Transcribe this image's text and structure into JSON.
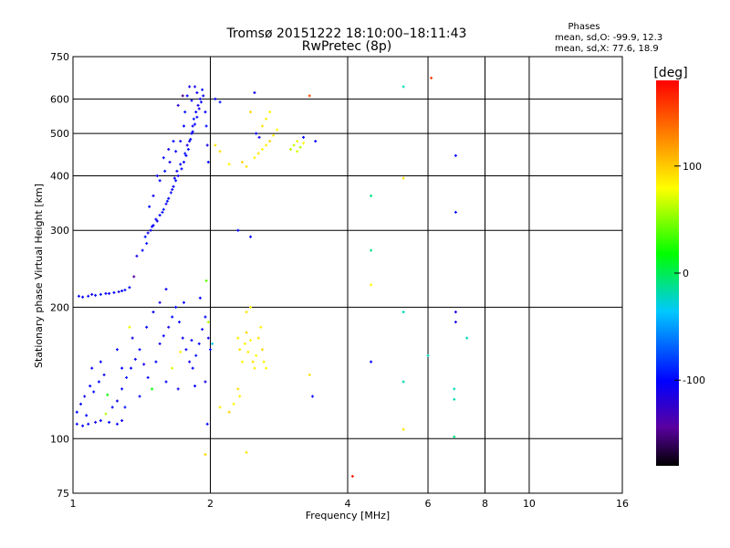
{
  "chart_data": {
    "type": "scatter",
    "title": "Tromsø 20151222 18:10:00–18:11:43",
    "subtitle": "RwPretec (8p)",
    "info": {
      "heading": "Phases",
      "line1": "mean, sd,O: -99.9, 12.3",
      "line2": "mean, sd,X:  77.6, 18.9"
    },
    "xlabel": "Frequency [MHz]",
    "ylabel": "Stationary phase Virtual Height [km]",
    "x_scale": "log",
    "y_scale": "log",
    "xlim": [
      1,
      16
    ],
    "ylim": [
      75,
      750
    ],
    "x_ticks": [
      1,
      2,
      4,
      6,
      8,
      10,
      16
    ],
    "x_tick_labels": [
      "1",
      "2",
      "4",
      "6",
      "8",
      "10",
      "16"
    ],
    "x_grid": [
      2,
      4,
      6,
      8,
      10
    ],
    "y_ticks": [
      75,
      100,
      200,
      300,
      400,
      500,
      600,
      750
    ],
    "y_tick_labels": [
      "75",
      "100",
      "200",
      "300",
      "400",
      "500",
      "600",
      "750"
    ],
    "y_grid": [
      100,
      200,
      300,
      400,
      500,
      600
    ],
    "grid": true,
    "colorbar": {
      "label": "[deg]",
      "range": [
        -180,
        180
      ],
      "ticks": [
        100,
        0,
        -100
      ],
      "tick_labels": [
        "100",
        "0",
        "-100"
      ]
    },
    "points": [
      {
        "x": 1.85,
        "y": 640,
        "c": -110
      },
      {
        "x": 1.87,
        "y": 620,
        "c": -105
      },
      {
        "x": 1.9,
        "y": 600,
        "c": -100
      },
      {
        "x": 1.88,
        "y": 580,
        "c": -110
      },
      {
        "x": 1.86,
        "y": 560,
        "c": -100
      },
      {
        "x": 1.84,
        "y": 540,
        "c": -95
      },
      {
        "x": 1.83,
        "y": 520,
        "c": -105
      },
      {
        "x": 1.82,
        "y": 500,
        "c": -100
      },
      {
        "x": 1.8,
        "y": 480,
        "c": -110
      },
      {
        "x": 1.79,
        "y": 460,
        "c": -95
      },
      {
        "x": 1.77,
        "y": 445,
        "c": -100
      },
      {
        "x": 1.75,
        "y": 430,
        "c": -105
      },
      {
        "x": 1.73,
        "y": 415,
        "c": -100
      },
      {
        "x": 1.7,
        "y": 400,
        "c": -110
      },
      {
        "x": 1.68,
        "y": 390,
        "c": -95
      },
      {
        "x": 1.66,
        "y": 378,
        "c": -100
      },
      {
        "x": 1.64,
        "y": 366,
        "c": -105
      },
      {
        "x": 1.62,
        "y": 355,
        "c": -100
      },
      {
        "x": 1.6,
        "y": 345,
        "c": -110
      },
      {
        "x": 1.58,
        "y": 335,
        "c": -95
      },
      {
        "x": 1.55,
        "y": 325,
        "c": -100
      },
      {
        "x": 1.53,
        "y": 315,
        "c": -105
      },
      {
        "x": 1.5,
        "y": 308,
        "c": -100
      },
      {
        "x": 1.48,
        "y": 300,
        "c": -110
      },
      {
        "x": 1.92,
        "y": 630,
        "c": -100
      },
      {
        "x": 1.93,
        "y": 610,
        "c": -105
      },
      {
        "x": 1.91,
        "y": 590,
        "c": -100
      },
      {
        "x": 1.89,
        "y": 570,
        "c": -110
      },
      {
        "x": 1.87,
        "y": 545,
        "c": -95
      },
      {
        "x": 1.85,
        "y": 525,
        "c": -100
      },
      {
        "x": 1.83,
        "y": 505,
        "c": -105
      },
      {
        "x": 1.81,
        "y": 485,
        "c": -100
      },
      {
        "x": 1.78,
        "y": 470,
        "c": -110
      },
      {
        "x": 1.76,
        "y": 450,
        "c": -95
      },
      {
        "x": 1.72,
        "y": 425,
        "c": -100
      },
      {
        "x": 1.69,
        "y": 410,
        "c": -105
      },
      {
        "x": 1.67,
        "y": 395,
        "c": -100
      },
      {
        "x": 1.65,
        "y": 372,
        "c": -110
      },
      {
        "x": 1.61,
        "y": 350,
        "c": -95
      },
      {
        "x": 1.57,
        "y": 330,
        "c": -100
      },
      {
        "x": 1.52,
        "y": 318,
        "c": -105
      },
      {
        "x": 1.49,
        "y": 306,
        "c": -100
      },
      {
        "x": 1.46,
        "y": 296,
        "c": -110
      },
      {
        "x": 1.44,
        "y": 290,
        "c": -95
      },
      {
        "x": 1.75,
        "y": 520,
        "c": -100
      },
      {
        "x": 1.72,
        "y": 480,
        "c": -105
      },
      {
        "x": 1.68,
        "y": 455,
        "c": -100
      },
      {
        "x": 1.63,
        "y": 430,
        "c": -110
      },
      {
        "x": 1.59,
        "y": 410,
        "c": -95
      },
      {
        "x": 1.55,
        "y": 390,
        "c": -100
      },
      {
        "x": 1.5,
        "y": 360,
        "c": -105
      },
      {
        "x": 1.47,
        "y": 340,
        "c": -100
      },
      {
        "x": 1.95,
        "y": 560,
        "c": -100
      },
      {
        "x": 1.96,
        "y": 520,
        "c": -95
      },
      {
        "x": 1.97,
        "y": 470,
        "c": -110
      },
      {
        "x": 1.98,
        "y": 430,
        "c": -100
      },
      {
        "x": 1.8,
        "y": 640,
        "c": -110
      },
      {
        "x": 1.78,
        "y": 610,
        "c": -100
      },
      {
        "x": 1.82,
        "y": 595,
        "c": -105
      },
      {
        "x": 1.76,
        "y": 560,
        "c": -95
      },
      {
        "x": 1.66,
        "y": 480,
        "c": -100
      },
      {
        "x": 1.62,
        "y": 460,
        "c": -110
      },
      {
        "x": 1.58,
        "y": 440,
        "c": -100
      },
      {
        "x": 1.53,
        "y": 400,
        "c": -105
      },
      {
        "x": 1.42,
        "y": 270,
        "c": -100
      },
      {
        "x": 1.38,
        "y": 262,
        "c": -110
      },
      {
        "x": 1.45,
        "y": 280,
        "c": -95
      },
      {
        "x": 1.74,
        "y": 610,
        "c": -150
      },
      {
        "x": 1.7,
        "y": 580,
        "c": -120
      },
      {
        "x": 2.05,
        "y": 600,
        "c": -100
      },
      {
        "x": 2.1,
        "y": 590,
        "c": -95
      },
      {
        "x": 1.03,
        "y": 212,
        "c": -100
      },
      {
        "x": 1.05,
        "y": 211,
        "c": -105
      },
      {
        "x": 1.08,
        "y": 212,
        "c": -100
      },
      {
        "x": 1.1,
        "y": 214,
        "c": -110
      },
      {
        "x": 1.12,
        "y": 213,
        "c": -100
      },
      {
        "x": 1.15,
        "y": 214,
        "c": -95
      },
      {
        "x": 1.18,
        "y": 215,
        "c": -100
      },
      {
        "x": 1.2,
        "y": 215,
        "c": -105
      },
      {
        "x": 1.23,
        "y": 216,
        "c": -100
      },
      {
        "x": 1.26,
        "y": 217,
        "c": -110
      },
      {
        "x": 1.28,
        "y": 218,
        "c": -100
      },
      {
        "x": 1.3,
        "y": 219,
        "c": -95
      },
      {
        "x": 1.33,
        "y": 222,
        "c": -100
      },
      {
        "x": 1.36,
        "y": 235,
        "c": -140
      },
      {
        "x": 1.02,
        "y": 108,
        "c": -100
      },
      {
        "x": 1.05,
        "y": 107,
        "c": -105
      },
      {
        "x": 1.08,
        "y": 108,
        "c": -100
      },
      {
        "x": 1.12,
        "y": 109,
        "c": -110
      },
      {
        "x": 1.15,
        "y": 110,
        "c": -100
      },
      {
        "x": 1.2,
        "y": 109,
        "c": -95
      },
      {
        "x": 1.25,
        "y": 108,
        "c": -100
      },
      {
        "x": 1.28,
        "y": 110,
        "c": -105
      },
      {
        "x": 1.04,
        "y": 120,
        "c": -100
      },
      {
        "x": 1.06,
        "y": 125,
        "c": -110
      },
      {
        "x": 1.09,
        "y": 132,
        "c": -100
      },
      {
        "x": 1.11,
        "y": 128,
        "c": -95
      },
      {
        "x": 1.14,
        "y": 135,
        "c": -100
      },
      {
        "x": 1.17,
        "y": 140,
        "c": -105
      },
      {
        "x": 1.19,
        "y": 126,
        "c": 20
      },
      {
        "x": 1.22,
        "y": 118,
        "c": -100
      },
      {
        "x": 1.25,
        "y": 122,
        "c": -110
      },
      {
        "x": 1.28,
        "y": 130,
        "c": -100
      },
      {
        "x": 1.31,
        "y": 138,
        "c": -95
      },
      {
        "x": 1.34,
        "y": 145,
        "c": -100
      },
      {
        "x": 1.37,
        "y": 152,
        "c": -105
      },
      {
        "x": 1.4,
        "y": 160,
        "c": -100
      },
      {
        "x": 1.43,
        "y": 148,
        "c": -110
      },
      {
        "x": 1.46,
        "y": 138,
        "c": -100
      },
      {
        "x": 1.49,
        "y": 130,
        "c": 20
      },
      {
        "x": 1.52,
        "y": 150,
        "c": -100
      },
      {
        "x": 1.55,
        "y": 165,
        "c": -105
      },
      {
        "x": 1.58,
        "y": 172,
        "c": -100
      },
      {
        "x": 1.62,
        "y": 180,
        "c": -110
      },
      {
        "x": 1.65,
        "y": 190,
        "c": -100
      },
      {
        "x": 1.68,
        "y": 200,
        "c": -95
      },
      {
        "x": 1.71,
        "y": 185,
        "c": -100
      },
      {
        "x": 1.74,
        "y": 170,
        "c": -105
      },
      {
        "x": 1.77,
        "y": 160,
        "c": -100
      },
      {
        "x": 1.8,
        "y": 150,
        "c": -110
      },
      {
        "x": 1.83,
        "y": 145,
        "c": -100
      },
      {
        "x": 1.86,
        "y": 155,
        "c": -95
      },
      {
        "x": 1.89,
        "y": 165,
        "c": -100
      },
      {
        "x": 1.92,
        "y": 178,
        "c": -105
      },
      {
        "x": 1.95,
        "y": 190,
        "c": -100
      },
      {
        "x": 1.98,
        "y": 170,
        "c": -110
      },
      {
        "x": 2.0,
        "y": 160,
        "c": -100
      },
      {
        "x": 1.6,
        "y": 135,
        "c": -100
      },
      {
        "x": 1.7,
        "y": 130,
        "c": -105
      },
      {
        "x": 1.85,
        "y": 132,
        "c": -100
      },
      {
        "x": 1.95,
        "y": 135,
        "c": -110
      },
      {
        "x": 1.4,
        "y": 125,
        "c": -100
      },
      {
        "x": 1.3,
        "y": 118,
        "c": -95
      },
      {
        "x": 1.5,
        "y": 195,
        "c": -100
      },
      {
        "x": 1.55,
        "y": 205,
        "c": -110
      },
      {
        "x": 1.75,
        "y": 205,
        "c": -100
      },
      {
        "x": 1.9,
        "y": 210,
        "c": -100
      },
      {
        "x": 1.6,
        "y": 220,
        "c": -105
      },
      {
        "x": 1.45,
        "y": 180,
        "c": -100
      },
      {
        "x": 1.35,
        "y": 170,
        "c": -110
      },
      {
        "x": 1.25,
        "y": 160,
        "c": -100
      },
      {
        "x": 1.15,
        "y": 150,
        "c": -100
      },
      {
        "x": 1.1,
        "y": 145,
        "c": -105
      },
      {
        "x": 1.65,
        "y": 145,
        "c": 70
      },
      {
        "x": 1.72,
        "y": 158,
        "c": 85
      },
      {
        "x": 1.82,
        "y": 168,
        "c": -100
      },
      {
        "x": 1.33,
        "y": 180,
        "c": 75
      },
      {
        "x": 1.28,
        "y": 145,
        "c": -100
      },
      {
        "x": 1.02,
        "y": 115,
        "c": -100
      },
      {
        "x": 1.07,
        "y": 113,
        "c": -100
      },
      {
        "x": 1.18,
        "y": 114,
        "c": 60
      },
      {
        "x": 1.97,
        "y": 108,
        "c": -100
      },
      {
        "x": 2.02,
        "y": 165,
        "c": -30
      },
      {
        "x": 2.3,
        "y": 170,
        "c": 85
      },
      {
        "x": 2.32,
        "y": 160,
        "c": 90
      },
      {
        "x": 2.35,
        "y": 150,
        "c": 80
      },
      {
        "x": 2.38,
        "y": 165,
        "c": 85
      },
      {
        "x": 2.4,
        "y": 175,
        "c": 95
      },
      {
        "x": 2.42,
        "y": 158,
        "c": 85
      },
      {
        "x": 2.45,
        "y": 168,
        "c": 80
      },
      {
        "x": 2.48,
        "y": 150,
        "c": 90
      },
      {
        "x": 2.5,
        "y": 145,
        "c": 85
      },
      {
        "x": 2.52,
        "y": 155,
        "c": 80
      },
      {
        "x": 2.55,
        "y": 170,
        "c": 90
      },
      {
        "x": 2.58,
        "y": 180,
        "c": 85
      },
      {
        "x": 2.6,
        "y": 160,
        "c": 95
      },
      {
        "x": 2.62,
        "y": 150,
        "c": 85
      },
      {
        "x": 2.65,
        "y": 145,
        "c": 80
      },
      {
        "x": 2.3,
        "y": 130,
        "c": 90
      },
      {
        "x": 2.32,
        "y": 125,
        "c": 85
      },
      {
        "x": 2.25,
        "y": 120,
        "c": 80
      },
      {
        "x": 2.4,
        "y": 195,
        "c": 90
      },
      {
        "x": 2.45,
        "y": 200,
        "c": 85
      },
      {
        "x": 2.2,
        "y": 115,
        "c": 95
      },
      {
        "x": 2.1,
        "y": 118,
        "c": 85
      },
      {
        "x": 1.98,
        "y": 185,
        "c": 60
      },
      {
        "x": 1.96,
        "y": 230,
        "c": 40
      },
      {
        "x": 1.95,
        "y": 92,
        "c": 95
      },
      {
        "x": 2.4,
        "y": 93,
        "c": 90
      },
      {
        "x": 2.5,
        "y": 440,
        "c": 85
      },
      {
        "x": 2.55,
        "y": 450,
        "c": 90
      },
      {
        "x": 2.6,
        "y": 460,
        "c": 80
      },
      {
        "x": 2.65,
        "y": 470,
        "c": 85
      },
      {
        "x": 2.7,
        "y": 480,
        "c": 95
      },
      {
        "x": 2.75,
        "y": 495,
        "c": 85
      },
      {
        "x": 2.8,
        "y": 510,
        "c": 80
      },
      {
        "x": 2.6,
        "y": 520,
        "c": 90
      },
      {
        "x": 2.65,
        "y": 540,
        "c": 85
      },
      {
        "x": 2.7,
        "y": 560,
        "c": 80
      },
      {
        "x": 2.52,
        "y": 500,
        "c": -100
      },
      {
        "x": 2.56,
        "y": 490,
        "c": -110
      },
      {
        "x": 2.4,
        "y": 420,
        "c": 90
      },
      {
        "x": 2.35,
        "y": 430,
        "c": 95
      },
      {
        "x": 2.2,
        "y": 425,
        "c": 80
      },
      {
        "x": 2.1,
        "y": 455,
        "c": 90
      },
      {
        "x": 2.05,
        "y": 470,
        "c": 90
      },
      {
        "x": 2.45,
        "y": 560,
        "c": 95
      },
      {
        "x": 3.0,
        "y": 460,
        "c": 60
      },
      {
        "x": 3.05,
        "y": 470,
        "c": 65
      },
      {
        "x": 3.1,
        "y": 480,
        "c": 75
      },
      {
        "x": 3.15,
        "y": 465,
        "c": 60
      },
      {
        "x": 3.2,
        "y": 475,
        "c": 80
      },
      {
        "x": 3.1,
        "y": 455,
        "c": 70
      },
      {
        "x": 3.2,
        "y": 490,
        "c": -100
      },
      {
        "x": 3.4,
        "y": 480,
        "c": -100
      },
      {
        "x": 2.5,
        "y": 620,
        "c": -110
      },
      {
        "x": 3.3,
        "y": 610,
        "c": 150
      },
      {
        "x": 2.45,
        "y": 290,
        "c": -100
      },
      {
        "x": 2.3,
        "y": 300,
        "c": -100
      },
      {
        "x": 3.3,
        "y": 140,
        "c": 90
      },
      {
        "x": 3.35,
        "y": 125,
        "c": -100
      },
      {
        "x": 4.1,
        "y": 82,
        "c": 170
      },
      {
        "x": 4.5,
        "y": 360,
        "c": -10
      },
      {
        "x": 4.5,
        "y": 270,
        "c": -10
      },
      {
        "x": 4.5,
        "y": 225,
        "c": 80
      },
      {
        "x": 4.5,
        "y": 150,
        "c": -100
      },
      {
        "x": 5.3,
        "y": 640,
        "c": -20
      },
      {
        "x": 5.3,
        "y": 395,
        "c": 90
      },
      {
        "x": 5.3,
        "y": 195,
        "c": -20
      },
      {
        "x": 5.3,
        "y": 105,
        "c": 90
      },
      {
        "x": 5.3,
        "y": 135,
        "c": -20
      },
      {
        "x": 6.1,
        "y": 670,
        "c": 160
      },
      {
        "x": 6.0,
        "y": 155,
        "c": -20
      },
      {
        "x": 6.9,
        "y": 445,
        "c": -100
      },
      {
        "x": 6.9,
        "y": 330,
        "c": -100
      },
      {
        "x": 6.9,
        "y": 195,
        "c": -110
      },
      {
        "x": 6.9,
        "y": 185,
        "c": -110
      },
      {
        "x": 6.85,
        "y": 130,
        "c": -20
      },
      {
        "x": 6.85,
        "y": 123,
        "c": -20
      },
      {
        "x": 6.85,
        "y": 101,
        "c": -10
      },
      {
        "x": 7.3,
        "y": 170,
        "c": -20
      }
    ]
  }
}
